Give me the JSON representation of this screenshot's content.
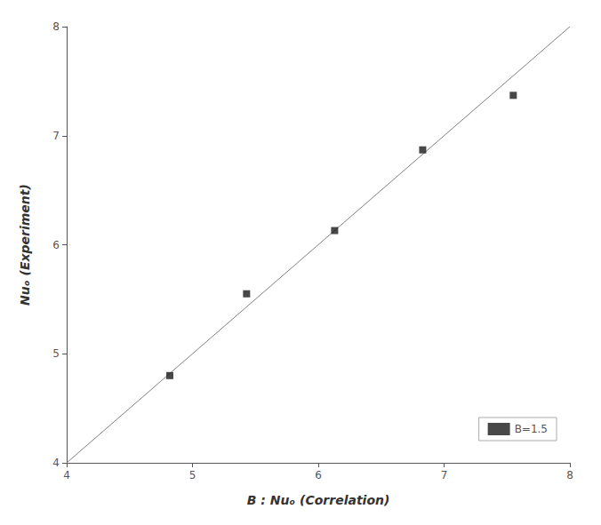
{
  "chart_data": {
    "type": "scatter",
    "xlabel": "B : Nuₒ (Correlation)",
    "ylabel": "Nuₒ (Experiment)",
    "series": [
      {
        "type": "line",
        "color": "#808080",
        "line_style": "solid",
        "x": [
          4.0,
          8.0
        ],
        "values": [
          4.0,
          8.0
        ]
      },
      {
        "type": "scatter",
        "name": "B=1.5",
        "color": "#1a1a1a",
        "marker": "square",
        "x": [
          4.82,
          5.43,
          6.13,
          6.83,
          7.55
        ],
        "values": [
          4.8,
          5.55,
          6.13,
          6.87,
          7.37
        ]
      }
    ],
    "xlim": [
      4,
      8
    ],
    "ylim": [
      4,
      8
    ],
    "xticks": [
      4,
      5,
      6,
      7,
      8
    ],
    "yticks": [
      4,
      5,
      6,
      7,
      8
    ],
    "grid": false,
    "legend": "lower right"
  }
}
